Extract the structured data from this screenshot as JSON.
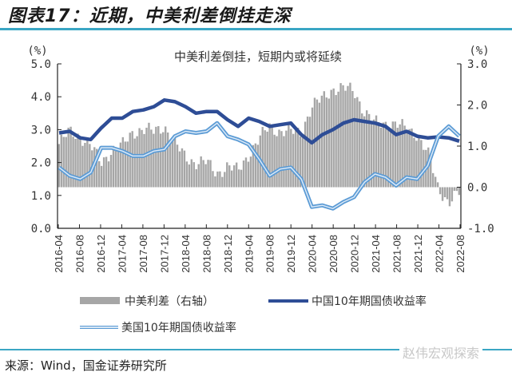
{
  "figure": {
    "title": "图表17：近期，中美利差倒挂走深",
    "source": "来源：Wind，国金证券研究所",
    "watermark": "赵伟宏观探索"
  },
  "colors": {
    "spread_bar": "#a6a6a6",
    "cn10y": "#2e4d96",
    "us10y": "#5b9bd5",
    "rule": "#3aa6c4"
  },
  "chart_data": {
    "type": "line",
    "title": "中美利差倒挂，短期内或将延续",
    "left_axis": {
      "unit": "(%)",
      "ylim": [
        0.0,
        5.0
      ],
      "ticks": [
        "5.0",
        "4.0",
        "3.0",
        "2.0",
        "1.0",
        "0.0"
      ]
    },
    "right_axis": {
      "unit": "(%)",
      "ylim": [
        -1.0,
        3.0
      ],
      "ticks": [
        "3.0",
        "2.0",
        "1.0",
        "0.0",
        "-1.0"
      ]
    },
    "x_ticks": [
      "2016-04",
      "2016-08",
      "2016-12",
      "2017-04",
      "2017-08",
      "2017-12",
      "2018-04",
      "2018-08",
      "2018-12",
      "2019-04",
      "2019-08",
      "2019-12",
      "2020-04",
      "2020-08",
      "2020-12",
      "2021-04",
      "2021-08",
      "2021-12",
      "2022-04",
      "2022-08"
    ],
    "legend": [
      "中美利差（右轴）",
      "中国10年期国债收益率",
      "美国10年期国债收益率"
    ],
    "grid": false,
    "legend_position": "bottom",
    "x": [
      "2016-04",
      "2016-06",
      "2016-08",
      "2016-10",
      "2016-12",
      "2017-02",
      "2017-04",
      "2017-06",
      "2017-08",
      "2017-10",
      "2017-12",
      "2018-02",
      "2018-04",
      "2018-06",
      "2018-08",
      "2018-10",
      "2018-12",
      "2019-02",
      "2019-04",
      "2019-06",
      "2019-08",
      "2019-10",
      "2019-12",
      "2020-02",
      "2020-04",
      "2020-06",
      "2020-08",
      "2020-10",
      "2020-12",
      "2021-02",
      "2021-04",
      "2021-06",
      "2021-08",
      "2021-10",
      "2021-12",
      "2022-02",
      "2022-04",
      "2022-06",
      "2022-08"
    ],
    "series": [
      {
        "name": "中国10年期国债收益率",
        "axis": "left",
        "values": [
          2.9,
          2.95,
          2.75,
          2.7,
          3.05,
          3.35,
          3.35,
          3.55,
          3.6,
          3.7,
          3.9,
          3.85,
          3.7,
          3.5,
          3.55,
          3.55,
          3.3,
          3.1,
          3.35,
          3.25,
          3.1,
          3.15,
          3.2,
          2.85,
          2.6,
          2.85,
          3.0,
          3.2,
          3.3,
          3.25,
          3.2,
          3.1,
          2.85,
          2.95,
          2.8,
          2.75,
          2.78,
          2.75,
          2.65
        ]
      },
      {
        "name": "美国10年期国债收益率",
        "axis": "left",
        "values": [
          1.85,
          1.6,
          1.5,
          1.7,
          2.45,
          2.45,
          2.35,
          2.2,
          2.2,
          2.35,
          2.4,
          2.8,
          2.95,
          2.9,
          2.95,
          3.2,
          2.8,
          2.7,
          2.55,
          2.1,
          1.6,
          1.8,
          1.85,
          1.5,
          0.65,
          0.7,
          0.6,
          0.8,
          0.95,
          1.4,
          1.65,
          1.55,
          1.3,
          1.55,
          1.5,
          1.9,
          2.8,
          3.1,
          2.8
        ]
      },
      {
        "name": "中美利差（右轴）",
        "axis": "right",
        "type": "bar",
        "values": [
          1.05,
          1.35,
          1.25,
          1.0,
          0.6,
          0.9,
          1.0,
          1.35,
          1.4,
          1.35,
          1.5,
          1.05,
          0.75,
          0.6,
          0.6,
          0.35,
          0.5,
          0.4,
          0.8,
          1.15,
          1.5,
          1.35,
          1.35,
          1.35,
          1.95,
          2.15,
          2.4,
          2.4,
          2.35,
          1.85,
          1.55,
          1.55,
          1.55,
          1.4,
          1.3,
          0.85,
          -0.02,
          -0.35,
          -0.15
        ]
      }
    ]
  }
}
